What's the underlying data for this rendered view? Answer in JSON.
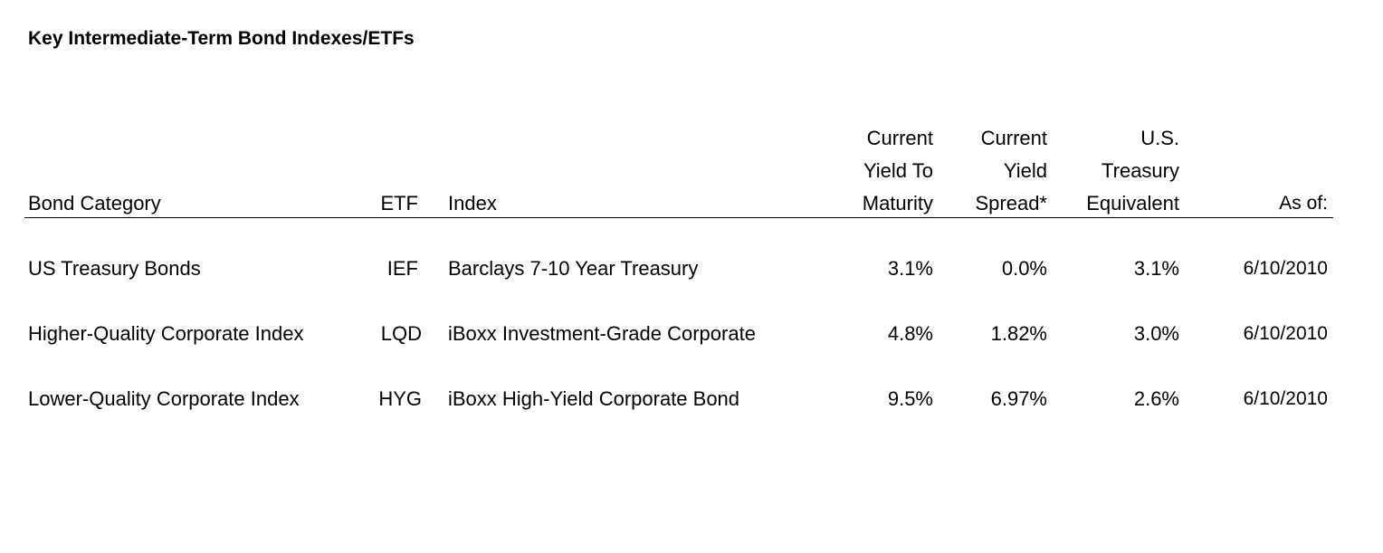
{
  "title": "Key Intermediate-Term Bond Indexes/ETFs",
  "headers": {
    "bond_category": "Bond Category",
    "etf": "ETF",
    "index": "Index",
    "ytm": [
      "Current",
      "Yield To",
      "Maturity"
    ],
    "spread": [
      "Current",
      "Yield",
      "Spread*"
    ],
    "treasury": [
      "U.S.",
      "Treasury",
      "Equivalent"
    ],
    "as_of": "As of:"
  },
  "rows": [
    {
      "category": "US Treasury Bonds",
      "etf": "IEF",
      "index": "Barclays 7-10 Year Treasury",
      "ytm": "3.1%",
      "spread": "0.0%",
      "treasury": "3.1%",
      "as_of": "6/10/2010"
    },
    {
      "category": "Higher-Quality Corporate Index",
      "etf": "LQD",
      "index": "iBoxx Investment-Grade Corporate",
      "ytm": "4.8%",
      "spread": "1.82%",
      "treasury": "3.0%",
      "as_of": "6/10/2010"
    },
    {
      "category": "Lower-Quality Corporate Index",
      "etf": "HYG",
      "index": "iBoxx High-Yield Corporate Bond",
      "ytm": "9.5%",
      "spread": "6.97%",
      "treasury": "2.6%",
      "as_of": "6/10/2010"
    }
  ]
}
